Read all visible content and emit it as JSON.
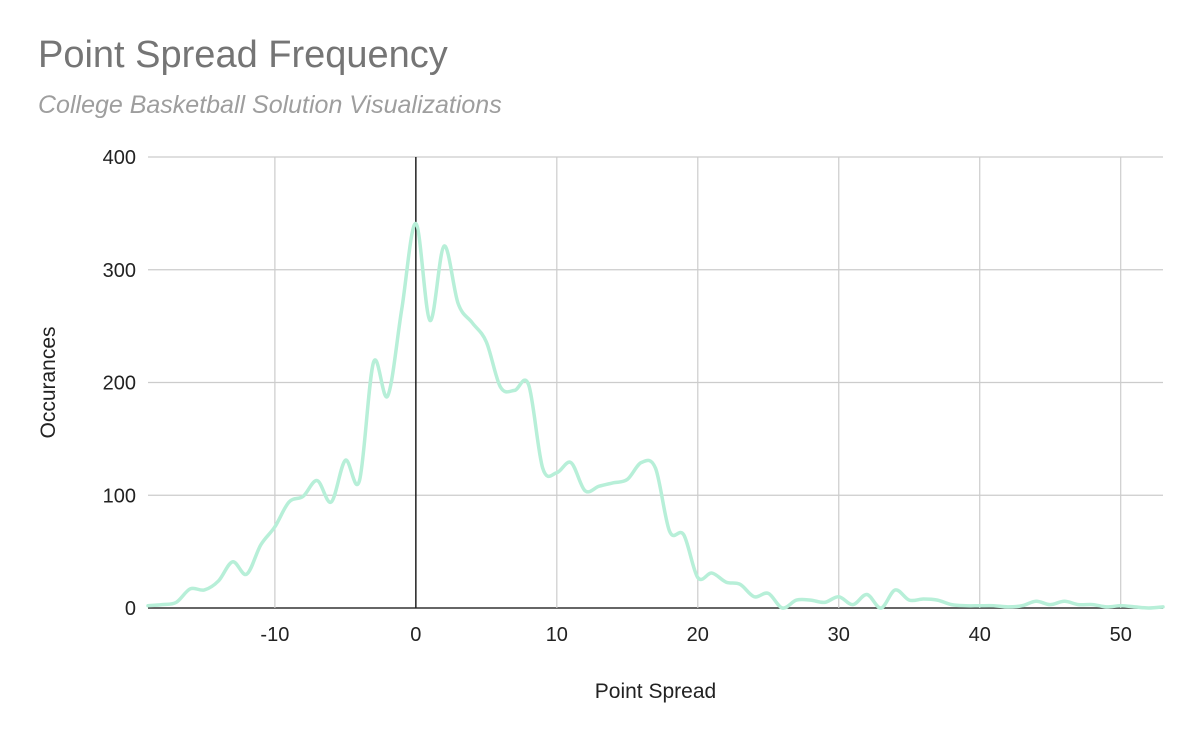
{
  "chart_data": {
    "type": "line",
    "title": "Point Spread Frequency",
    "subtitle": "College Basketball Solution Visualizations",
    "xlabel": "Point Spread",
    "ylabel": "Occurances",
    "xlim": [
      -19,
      53
    ],
    "ylim": [
      0,
      400
    ],
    "x_ticks": [
      -10,
      0,
      10,
      20,
      30,
      40,
      50
    ],
    "y_ticks": [
      0,
      100,
      200,
      300,
      400
    ],
    "grid": true,
    "legend": "none",
    "line_color": "#b7efd8",
    "series": [
      {
        "x": [
          -19,
          -18,
          -17,
          -16,
          -15,
          -14,
          -13,
          -12,
          -11,
          -10,
          -9,
          -8,
          -7,
          -6,
          -5,
          -4,
          -3,
          -2,
          -1,
          0,
          1,
          2,
          3,
          4,
          5,
          6,
          7,
          8,
          9,
          10,
          11,
          12,
          13,
          14,
          15,
          16,
          17,
          18,
          19,
          20,
          21,
          22,
          23,
          24,
          25,
          26,
          27,
          28,
          29,
          30,
          31,
          32,
          33,
          34,
          35,
          36,
          37,
          38,
          39,
          40,
          41,
          42,
          43,
          44,
          45,
          46,
          47,
          48,
          49,
          50,
          51,
          52,
          53
        ],
        "y": [
          2,
          3,
          5,
          17,
          16,
          24,
          41,
          30,
          56,
          72,
          94,
          99,
          113,
          94,
          131,
          113,
          218,
          188,
          265,
          341,
          255,
          321,
          270,
          253,
          236,
          196,
          193,
          198,
          124,
          120,
          129,
          104,
          108,
          111,
          114,
          129,
          124,
          68,
          65,
          27,
          31,
          23,
          21,
          10,
          13,
          0,
          7,
          7,
          5,
          10,
          3,
          12,
          0,
          16,
          7,
          8,
          7,
          3,
          2,
          2,
          2,
          1,
          2,
          6,
          3,
          6,
          3,
          3,
          1,
          2,
          1,
          0,
          1
        ]
      }
    ]
  }
}
